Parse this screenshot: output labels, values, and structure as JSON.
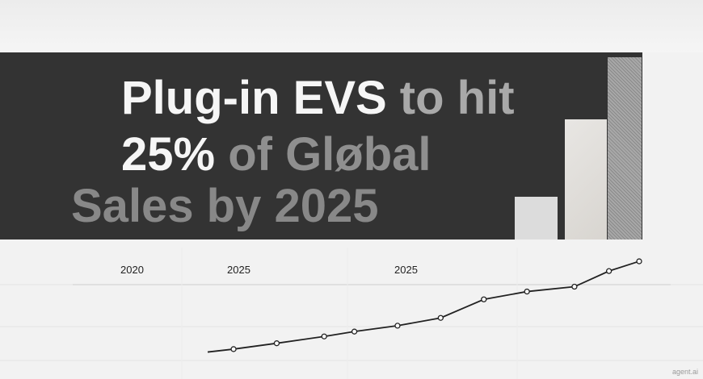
{
  "headline": {
    "line1_white": "Plug-in EVS",
    "line1_gray": " to hit",
    "line2_white": "25%",
    "line2_gray": " of Gløbal",
    "line3": "Sales by 2025"
  },
  "labels": [
    "2020",
    "2025",
    "2025"
  ],
  "watermark": "agent.ai",
  "colors": {
    "banner": "#333333",
    "background": "#f2f2f2",
    "line": "#222222"
  },
  "chart_data": {
    "type": "line",
    "bars_levels": [
      0.23,
      0.64,
      0.97
    ],
    "points": [
      [
        0.0,
        0.02
      ],
      [
        0.06,
        0.05
      ],
      [
        0.16,
        0.11
      ],
      [
        0.27,
        0.18
      ],
      [
        0.34,
        0.23
      ],
      [
        0.44,
        0.29
      ],
      [
        0.54,
        0.37
      ],
      [
        0.64,
        0.56
      ],
      [
        0.74,
        0.64
      ],
      [
        0.85,
        0.69
      ],
      [
        0.93,
        0.85
      ],
      [
        1.0,
        0.95
      ]
    ]
  }
}
